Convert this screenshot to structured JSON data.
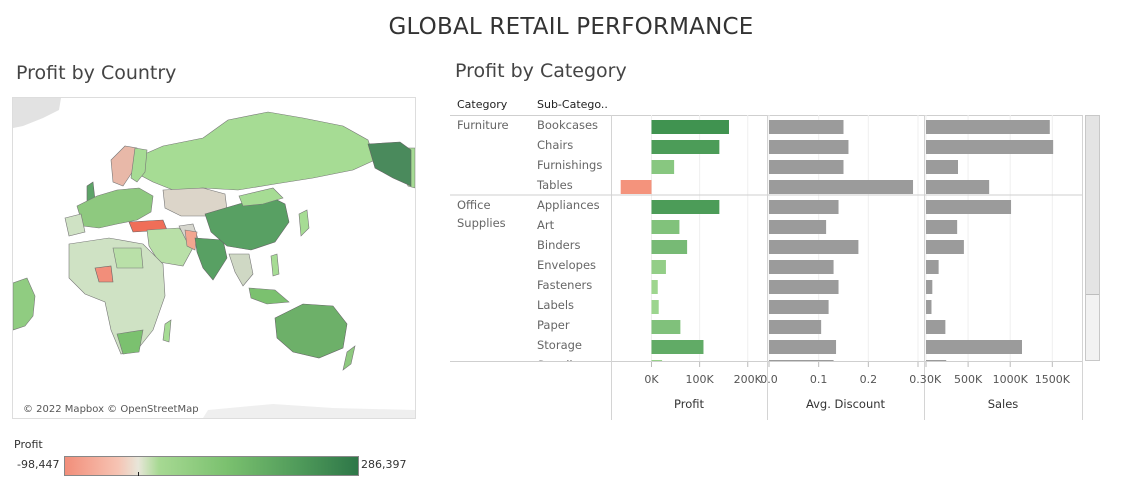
{
  "dashboard": {
    "title": "GLOBAL RETAIL PERFORMANCE"
  },
  "map": {
    "title": "Profit by Country",
    "credit": "© 2022 Mapbox © OpenStreetMap",
    "legend": {
      "title": "Profit",
      "min_label": "-98,447",
      "max_label": "286,397",
      "min": -98447,
      "max": 286397
    }
  },
  "category_chart": {
    "title": "Profit by Category",
    "headers": {
      "category": "Category",
      "subcategory": "Sub-Catego.."
    },
    "axis_titles": {
      "profit": "Profit",
      "discount": "Avg. Discount",
      "sales": "Sales"
    }
  },
  "colors": {
    "positive_dark": "#3a8f4c",
    "positive_light": "#a6dc94",
    "negative": "#f4937c",
    "bar_gray": "#9b9b9b"
  },
  "chart_data": [
    {
      "type": "bar",
      "title": "Profit by Category",
      "groups": [
        {
          "category": "Furniture",
          "subcategories": [
            "Bookcases",
            "Chairs",
            "Furnishings",
            "Tables"
          ]
        },
        {
          "category": "Office Supplies",
          "subcategories": [
            "Appliances",
            "Art",
            "Binders",
            "Envelopes",
            "Fasteners",
            "Labels",
            "Paper",
            "Storage",
            "Supplies"
          ]
        }
      ],
      "categories": [
        "Bookcases",
        "Chairs",
        "Furnishings",
        "Tables",
        "Appliances",
        "Art",
        "Binders",
        "Envelopes",
        "Fasteners",
        "Labels",
        "Paper",
        "Storage",
        "Supplies"
      ],
      "series": [
        {
          "name": "Profit",
          "values": [
            161000,
            141000,
            47000,
            -64000,
            141000,
            58000,
            74000,
            30000,
            13000,
            15000,
            60000,
            108000,
            22000
          ],
          "ticks": [
            0,
            100000,
            200000
          ],
          "tick_labels": [
            "0K",
            "100K",
            "200K"
          ],
          "xlim": [
            -80000,
            240000
          ]
        },
        {
          "name": "Avg. Discount",
          "values": [
            0.15,
            0.16,
            0.15,
            0.29,
            0.14,
            0.115,
            0.18,
            0.13,
            0.14,
            0.12,
            0.105,
            0.135,
            0.13
          ],
          "ticks": [
            0,
            0.1,
            0.2,
            0.3
          ],
          "tick_labels": [
            "0.0",
            "0.1",
            "0.2",
            "0.3"
          ],
          "xlim": [
            0,
            0.3
          ]
        },
        {
          "name": "Sales",
          "values": [
            1470000,
            1510000,
            380000,
            750000,
            1010000,
            370000,
            450000,
            150000,
            75000,
            65000,
            230000,
            1140000,
            240000
          ],
          "ticks": [
            0,
            500000,
            1000000,
            1500000
          ],
          "tick_labels": [
            "0K",
            "500K",
            "1000K",
            "1500K"
          ],
          "xlim": [
            0,
            1710000
          ]
        }
      ]
    },
    {
      "type": "map",
      "title": "Profit by Country",
      "color_measure": "Profit",
      "range": [
        -98447,
        286397
      ]
    }
  ]
}
